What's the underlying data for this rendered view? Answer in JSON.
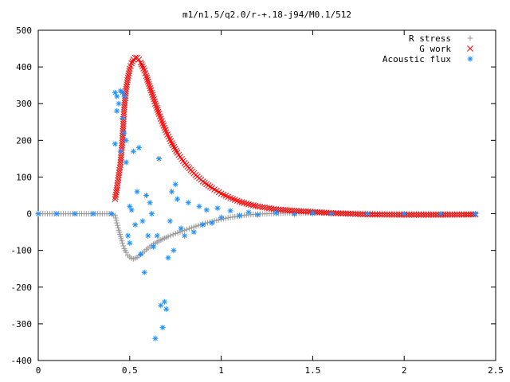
{
  "chart_data": {
    "type": "scatter",
    "title": "m1/n1.5/q2.0/r-+.18-j94/M0.1/512",
    "xlim": [
      0,
      2.5
    ],
    "ylim": [
      -400,
      500
    ],
    "xticks": [
      0,
      0.5,
      1,
      1.5,
      2,
      2.5
    ],
    "xtick_labels": [
      "0",
      "0.5",
      "1",
      "1.5",
      "2",
      "2.5"
    ],
    "yticks": [
      -400,
      -300,
      -200,
      -100,
      0,
      100,
      200,
      300,
      400,
      500
    ],
    "ytick_labels": [
      "-400",
      "-300",
      "-200",
      "-100",
      "0",
      "100",
      "200",
      "300",
      "400",
      "500"
    ],
    "grid": false,
    "legend_position": "top-right",
    "series": [
      {
        "name": "R stress",
        "marker": "plus",
        "color": "#999999",
        "x": [
          0.0,
          0.1,
          0.2,
          0.3,
          0.4,
          0.42,
          0.43,
          0.44,
          0.45,
          0.46,
          0.47,
          0.48,
          0.49,
          0.5,
          0.51,
          0.52,
          0.53,
          0.54,
          0.55,
          0.57,
          0.59,
          0.61,
          0.63,
          0.65,
          0.68,
          0.71,
          0.75,
          0.8,
          0.85,
          0.9,
          0.95,
          1.0,
          1.05,
          1.1,
          1.15,
          1.2,
          1.3,
          1.4,
          1.5,
          1.6,
          1.8,
          2.0,
          2.2,
          2.39
        ],
        "y": [
          0,
          0,
          0,
          0,
          0,
          -5,
          -25,
          -45,
          -62,
          -80,
          -95,
          -105,
          -113,
          -118,
          -121,
          -123,
          -122,
          -119,
          -115,
          -107,
          -98,
          -90,
          -83,
          -77,
          -69,
          -62,
          -54,
          -45,
          -36,
          -28,
          -21,
          -15,
          -10,
          -6,
          -3,
          -1,
          1,
          2,
          2,
          2,
          1,
          0,
          0,
          0
        ]
      },
      {
        "name": "G work",
        "marker": "cross",
        "color": "#ff0000",
        "x": [
          0.42,
          0.43,
          0.44,
          0.45,
          0.46,
          0.47,
          0.48,
          0.49,
          0.5,
          0.51,
          0.52,
          0.53,
          0.54,
          0.55,
          0.56,
          0.57,
          0.58,
          0.59,
          0.6,
          0.62,
          0.64,
          0.66,
          0.68,
          0.7,
          0.73,
          0.76,
          0.8,
          0.85,
          0.9,
          0.95,
          1.0,
          1.05,
          1.1,
          1.15,
          1.2,
          1.3,
          1.4,
          1.5,
          1.6,
          1.8,
          2.0,
          2.2,
          2.39
        ],
        "y": [
          40,
          70,
          105,
          140,
          200,
          290,
          340,
          370,
          395,
          410,
          420,
          425,
          425,
          420,
          412,
          402,
          390,
          376,
          360,
          330,
          300,
          272,
          246,
          222,
          192,
          166,
          138,
          110,
          88,
          70,
          55,
          43,
          33,
          26,
          20,
          12,
          8,
          5,
          2,
          -2,
          -3,
          -3,
          -2
        ]
      },
      {
        "name": "Acoustic flux",
        "marker": "star",
        "color": "#1e90ff",
        "x": [
          0.0,
          0.1,
          0.2,
          0.3,
          0.4,
          0.42,
          0.42,
          0.43,
          0.43,
          0.44,
          0.45,
          0.45,
          0.46,
          0.46,
          0.47,
          0.47,
          0.48,
          0.48,
          0.49,
          0.5,
          0.5,
          0.51,
          0.52,
          0.53,
          0.54,
          0.55,
          0.56,
          0.57,
          0.58,
          0.59,
          0.6,
          0.61,
          0.62,
          0.63,
          0.64,
          0.65,
          0.66,
          0.67,
          0.68,
          0.69,
          0.7,
          0.71,
          0.72,
          0.73,
          0.74,
          0.75,
          0.76,
          0.78,
          0.8,
          0.82,
          0.85,
          0.88,
          0.9,
          0.92,
          0.95,
          0.98,
          1.0,
          1.05,
          1.1,
          1.15,
          1.2,
          1.3,
          1.4,
          1.5,
          1.6,
          1.8,
          2.0,
          2.2,
          2.39
        ],
        "y": [
          0,
          0,
          0,
          0,
          0,
          190,
          330,
          280,
          320,
          300,
          170,
          335,
          260,
          330,
          220,
          320,
          140,
          200,
          -60,
          20,
          -80,
          10,
          170,
          -30,
          60,
          180,
          -110,
          -20,
          -160,
          50,
          -60,
          30,
          0,
          -90,
          -340,
          -60,
          150,
          -250,
          -310,
          -240,
          -260,
          -120,
          -20,
          60,
          -100,
          80,
          40,
          -40,
          -60,
          30,
          -50,
          20,
          -30,
          10,
          -25,
          15,
          -10,
          8,
          -5,
          4,
          -3,
          2,
          -1,
          1,
          0,
          0,
          0,
          0,
          0
        ]
      }
    ]
  }
}
